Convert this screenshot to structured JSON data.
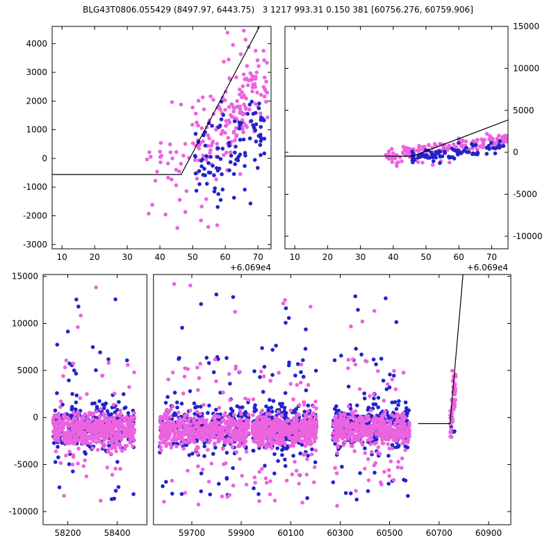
{
  "title": "BLG43T0806.055429 (8497.97, 6443.75)   3 1217 993.31 0.150 381 [60756.276, 60759.906]",
  "colors": {
    "pink": "#EC63E0",
    "blue": "#2323CB",
    "line": "#000000",
    "frame": "#000000"
  },
  "chart_data": [
    {
      "id": "zoom-left",
      "type": "scatter",
      "title": "",
      "xlabel": "",
      "ylabel": "",
      "xlim": [
        7,
        74
      ],
      "ylim": [
        -3150,
        4600
      ],
      "xticks": [
        10,
        20,
        30,
        40,
        50,
        60,
        70
      ],
      "yticks": [
        -3000,
        -2000,
        -1000,
        0,
        1000,
        2000,
        3000,
        4000
      ],
      "ytick_side": "left",
      "x_offset_label": "+6.069e4",
      "grid": false,
      "legend": "none",
      "line": [
        [
          7,
          -560
        ],
        [
          46.5,
          -560
        ],
        [
          70.5,
          4600
        ]
      ],
      "clusters": [
        {
          "color": "pink",
          "n": 30,
          "x": [
            36,
            51
          ],
          "y": [
            -450,
            -150
          ],
          "sigma": 650
        },
        {
          "color": "pink",
          "n": 8,
          "x": [
            40,
            58
          ],
          "yu": [
            -2550,
            -1300
          ]
        },
        {
          "color": "pink",
          "n": 165,
          "x": [
            50,
            73
          ],
          "y": [
            250,
            2650
          ],
          "sigma": 780
        },
        {
          "color": "pink",
          "n": 7,
          "x": [
            57,
            70
          ],
          "yu": [
            3200,
            4480
          ]
        },
        {
          "color": "pink",
          "n": 2,
          "x": [
            42,
            47
          ],
          "yu": [
            1600,
            2000
          ]
        },
        {
          "color": "blue",
          "n": 95,
          "x": [
            50,
            72
          ],
          "y": [
            -350,
            1150
          ],
          "sigma": 620
        },
        {
          "color": "blue",
          "n": 8,
          "x": [
            52,
            68
          ],
          "yu": [
            -1900,
            -800
          ]
        }
      ]
    },
    {
      "id": "zoom-right",
      "type": "scatter",
      "title": "",
      "xlabel": "",
      "ylabel": "",
      "xlim": [
        7,
        75
      ],
      "ylim": [
        -11500,
        15000
      ],
      "xticks": [
        10,
        20,
        30,
        40,
        50,
        60,
        70
      ],
      "yticks": [
        -10000,
        -5000,
        0,
        5000,
        10000,
        15000
      ],
      "ytick_side": "right",
      "x_offset_label": "+6.069e4",
      "grid": false,
      "legend": "none",
      "line": [
        [
          7,
          -450
        ],
        [
          46,
          -450
        ],
        [
          78,
          4300
        ]
      ],
      "clusters": [
        {
          "color": "pink",
          "n": 160,
          "x": [
            37,
            75
          ],
          "y": [
            -650,
            1600
          ],
          "sigma": 430
        },
        {
          "color": "pink",
          "n": 6,
          "x": [
            40,
            62
          ],
          "yu": [
            -1900,
            -1000
          ]
        },
        {
          "color": "blue",
          "n": 85,
          "x": [
            45,
            74
          ],
          "y": [
            -750,
            650
          ],
          "sigma": 420
        }
      ]
    },
    {
      "id": "full-lightcurve",
      "type": "scatter",
      "title": "",
      "xlabel": "",
      "ylabel": "",
      "xsegments": [
        {
          "x0": 58100,
          "x1": 58520,
          "f0": 0.0,
          "f1": 0.222
        },
        {
          "x0": 59545,
          "x1": 60990,
          "f0": 0.236,
          "f1": 1.0
        }
      ],
      "ylim": [
        -11400,
        15200
      ],
      "xticks": [
        58200,
        58400,
        59700,
        59900,
        60100,
        60300,
        60500,
        60700,
        60900
      ],
      "yticks": [
        -10000,
        -5000,
        0,
        5000,
        10000,
        15000
      ],
      "ytick_side": "left",
      "grid": false,
      "legend": "none",
      "line": [
        [
          60615,
          -650
        ],
        [
          60744,
          -650
        ],
        [
          60798,
          15600
        ]
      ],
      "clusters": [
        {
          "color": "blue",
          "n": 250,
          "x": [
            58140,
            58470
          ],
          "y": [
            -1000,
            -1000
          ],
          "sigma": 1250
        },
        {
          "color": "blue",
          "n": 42,
          "x": [
            58140,
            58470
          ],
          "yu": [
            -8800,
            7800
          ]
        },
        {
          "color": "blue",
          "n": 4,
          "x": [
            58200,
            58420
          ],
          "yu": [
            8800,
            13400
          ]
        },
        {
          "color": "blue",
          "n": 250,
          "x": [
            59570,
            59930
          ],
          "y": [
            -1000,
            -1000
          ],
          "sigma": 1250
        },
        {
          "color": "blue",
          "n": 42,
          "x": [
            59570,
            59930
          ],
          "yu": [
            -8800,
            7800
          ]
        },
        {
          "color": "blue",
          "n": 4,
          "x": [
            59600,
            59900
          ],
          "yu": [
            8800,
            13400
          ]
        },
        {
          "color": "blue",
          "n": 250,
          "x": [
            59945,
            60205
          ],
          "y": [
            -1000,
            -1000
          ],
          "sigma": 1250
        },
        {
          "color": "blue",
          "n": 42,
          "x": [
            59945,
            60205
          ],
          "yu": [
            -8800,
            7800
          ]
        },
        {
          "color": "blue",
          "n": 4,
          "x": [
            59990,
            60190
          ],
          "yu": [
            8800,
            13400
          ]
        },
        {
          "color": "blue",
          "n": 250,
          "x": [
            60270,
            60580
          ],
          "y": [
            -1000,
            -1000
          ],
          "sigma": 1250
        },
        {
          "color": "blue",
          "n": 42,
          "x": [
            60270,
            60580
          ],
          "yu": [
            -8800,
            7800
          ]
        },
        {
          "color": "blue",
          "n": 4,
          "x": [
            60330,
            60560
          ],
          "yu": [
            8800,
            13400
          ]
        },
        {
          "color": "pink",
          "n": 470,
          "x": [
            58140,
            58470
          ],
          "y": [
            -1300,
            -1300
          ],
          "sigma": 820
        },
        {
          "color": "pink",
          "n": 52,
          "x": [
            58140,
            58470
          ],
          "yu": [
            -9400,
            6200
          ]
        },
        {
          "color": "pink",
          "n": 3,
          "x": [
            58200,
            58420
          ],
          "yu": [
            9000,
            14800
          ]
        },
        {
          "color": "pink",
          "n": 470,
          "x": [
            59570,
            59930
          ],
          "y": [
            -1300,
            -1300
          ],
          "sigma": 820
        },
        {
          "color": "pink",
          "n": 52,
          "x": [
            59570,
            59930
          ],
          "yu": [
            -9400,
            6200
          ]
        },
        {
          "color": "pink",
          "n": 3,
          "x": [
            59600,
            59900
          ],
          "yu": [
            9000,
            14200
          ]
        },
        {
          "color": "pink",
          "n": 470,
          "x": [
            59945,
            60205
          ],
          "y": [
            -1300,
            -1300
          ],
          "sigma": 820
        },
        {
          "color": "pink",
          "n": 52,
          "x": [
            59945,
            60205
          ],
          "yu": [
            -9400,
            6200
          ]
        },
        {
          "color": "pink",
          "n": 3,
          "x": [
            59990,
            60190
          ],
          "yu": [
            9000,
            13600
          ]
        },
        {
          "color": "pink",
          "n": 470,
          "x": [
            60270,
            60580
          ],
          "y": [
            -1300,
            -1300
          ],
          "sigma": 820
        },
        {
          "color": "pink",
          "n": 52,
          "x": [
            60270,
            60580
          ],
          "yu": [
            -9400,
            6200
          ]
        },
        {
          "color": "pink",
          "n": 3,
          "x": [
            60330,
            60560
          ],
          "yu": [
            9000,
            12800
          ]
        },
        {
          "color": "blue",
          "n": 7,
          "x": [
            60746,
            60764
          ],
          "yu": [
            -1600,
            1400
          ]
        },
        {
          "color": "pink",
          "n": 48,
          "x": [
            60744,
            60768
          ],
          "y": [
            -1400,
            3600
          ],
          "sigma": 900
        },
        {
          "color": "pink",
          "n": 10,
          "x": [
            60752,
            60768
          ],
          "yu": [
            2600,
            5200
          ]
        }
      ]
    }
  ]
}
